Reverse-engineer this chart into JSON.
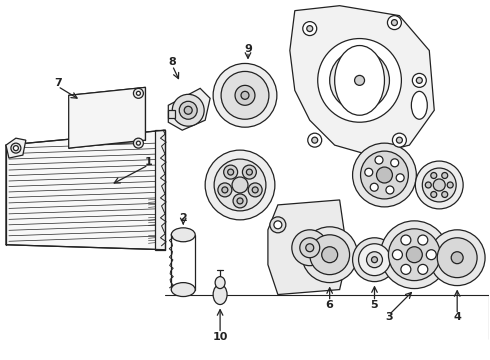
{
  "bg_color": "#ffffff",
  "line_color": "#222222",
  "lw": 0.9,
  "fig_width": 4.9,
  "fig_height": 3.6,
  "dpi": 100
}
